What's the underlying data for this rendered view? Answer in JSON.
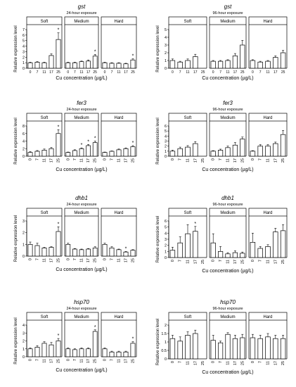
{
  "chart_data": [
    {
      "gene": "gst",
      "subtitle": "24-hour exposure",
      "ylabel": "Relative expression level",
      "xlabel": "Cu concentration (µg/L)",
      "ylim": [
        0,
        7
      ],
      "yticks": [
        0,
        1,
        2,
        3,
        4,
        5,
        6,
        7
      ],
      "groups": [
        "Soft",
        "Medium",
        "Hard"
      ],
      "categories": [
        "0",
        "7",
        "11",
        "17",
        "25"
      ],
      "values": [
        [
          1.0,
          1.1,
          1.0,
          2.3,
          5.2
        ],
        [
          1.0,
          1.0,
          1.2,
          1.3,
          2.2
        ],
        [
          1.0,
          0.9,
          0.9,
          0.8,
          1.5
        ]
      ],
      "errors": [
        [
          0.1,
          0.1,
          0.1,
          0.3,
          1.2
        ],
        [
          0.1,
          0.1,
          0.1,
          0.2,
          0.3
        ],
        [
          0.1,
          0.1,
          0.1,
          0.1,
          0.2
        ]
      ],
      "stars": [
        [
          false,
          false,
          false,
          false,
          true
        ],
        [
          false,
          false,
          false,
          false,
          true
        ],
        [
          false,
          false,
          false,
          false,
          true
        ]
      ],
      "xticks_shown": false
    },
    {
      "gene": "gst",
      "subtitle": "96-hour exposure",
      "ylabel": "Relative expression level",
      "xlabel": "Cu concentration (µg/L)",
      "ylim": [
        0,
        5
      ],
      "yticks": [
        0,
        1,
        2,
        3,
        4,
        5
      ],
      "groups": [
        "Soft",
        "Medium",
        "Hard"
      ],
      "categories": [
        "0",
        "7",
        "11",
        "17",
        "25"
      ],
      "values": [
        [
          1.0,
          0.8,
          1.0,
          1.5,
          null
        ],
        [
          0.9,
          0.9,
          1.0,
          1.6,
          3.0
        ],
        [
          1.0,
          0.8,
          0.9,
          1.4,
          2.0
        ]
      ],
      "errors": [
        [
          0.2,
          0.1,
          0.2,
          0.3,
          null
        ],
        [
          0.1,
          0.1,
          0.1,
          0.3,
          0.6
        ],
        [
          0.1,
          0.1,
          0.1,
          0.2,
          0.3
        ]
      ],
      "stars": [
        [
          false,
          false,
          false,
          false,
          false
        ],
        [
          false,
          false,
          false,
          false,
          false
        ],
        [
          false,
          false,
          false,
          false,
          false
        ]
      ],
      "xticks_shown": false
    },
    {
      "gene": "fer3",
      "subtitle": "24-hour exposure",
      "ylabel": "Relative expression level",
      "xlabel": "Cu concentration (µg/L)",
      "ylim": [
        0,
        8
      ],
      "yticks": [
        0,
        2,
        4,
        6,
        8
      ],
      "groups": [
        "Soft",
        "Medium",
        "Hard"
      ],
      "categories": [
        "0",
        "7",
        "11",
        "17",
        "25"
      ],
      "values": [
        [
          1.0,
          1.3,
          1.6,
          2.0,
          6.0
        ],
        [
          1.0,
          1.5,
          2.0,
          2.8,
          3.6
        ],
        [
          1.0,
          1.3,
          1.7,
          2.0,
          2.5
        ]
      ],
      "errors": [
        [
          0.2,
          0.2,
          0.3,
          0.3,
          1.0
        ],
        [
          0.1,
          0.2,
          0.2,
          0.3,
          0.4
        ],
        [
          0.1,
          0.1,
          0.2,
          0.2,
          0.3
        ]
      ],
      "stars": [
        [
          false,
          false,
          false,
          false,
          true
        ],
        [
          false,
          false,
          true,
          true,
          true
        ],
        [
          false,
          false,
          false,
          false,
          true
        ]
      ],
      "xticks_shown": true
    },
    {
      "gene": "fer3",
      "subtitle": "96-hour exposure",
      "ylabel": "Relative expression level",
      "xlabel": "Cu concentration (µg/L)",
      "ylim": [
        0,
        6
      ],
      "yticks": [
        0,
        1,
        2,
        3,
        4,
        5,
        6
      ],
      "groups": [
        "Soft",
        "Medium",
        "Hard"
      ],
      "categories": [
        "0",
        "7",
        "11",
        "17",
        "25"
      ],
      "values": [
        [
          1.0,
          1.5,
          1.8,
          2.5,
          null
        ],
        [
          1.0,
          1.2,
          1.7,
          2.2,
          3.4
        ],
        [
          1.0,
          2.0,
          2.0,
          2.5,
          4.3
        ]
      ],
      "errors": [
        [
          0.2,
          0.3,
          0.3,
          0.4,
          null
        ],
        [
          0.1,
          0.2,
          0.3,
          0.5,
          0.4
        ],
        [
          0.1,
          0.3,
          0.3,
          0.3,
          0.8
        ]
      ],
      "stars": [
        [
          false,
          false,
          false,
          false,
          false
        ],
        [
          false,
          false,
          false,
          false,
          false
        ],
        [
          false,
          false,
          false,
          false,
          false
        ]
      ],
      "xticks_shown": true
    },
    {
      "gene": "dhb1",
      "subtitle": "24-hour exposure",
      "ylabel": "Relative expression level",
      "xlabel": "Cu concentration (µg/L)",
      "ylim": [
        0,
        3
      ],
      "yticks": [
        0,
        1,
        2,
        3
      ],
      "groups": [
        "Soft",
        "Medium",
        "Hard"
      ],
      "categories": [
        "0",
        "7",
        "11",
        "17",
        "25"
      ],
      "values": [
        [
          1.0,
          0.9,
          0.7,
          0.75,
          2.1
        ],
        [
          1.0,
          0.6,
          0.55,
          0.6,
          0.7
        ],
        [
          1.0,
          0.7,
          0.55,
          0.35,
          0.5
        ]
      ],
      "errors": [
        [
          0.2,
          0.2,
          0.05,
          0.05,
          0.4
        ],
        [
          0.1,
          0.05,
          0.05,
          0.05,
          0.1
        ],
        [
          0.1,
          0.1,
          0.05,
          0.05,
          0.05
        ]
      ],
      "stars": [
        [
          false,
          false,
          false,
          false,
          true
        ],
        [
          false,
          false,
          false,
          false,
          false
        ],
        [
          false,
          false,
          false,
          true,
          false
        ]
      ],
      "xticks_shown": true
    },
    {
      "gene": "dhb1",
      "subtitle": "96-hour exposure",
      "ylabel": "Relative expression level",
      "xlabel": "Cu concentration (µg/L)",
      "ylim": [
        0,
        6
      ],
      "yticks": [
        0,
        1,
        2,
        3,
        4,
        5,
        6
      ],
      "groups": [
        "Soft",
        "Medium",
        "Hard"
      ],
      "categories": [
        "0",
        "7",
        "11",
        "17",
        "25"
      ],
      "values": [
        [
          1.2,
          2.4,
          3.9,
          4.3,
          null
        ],
        [
          2.4,
          1.0,
          0.6,
          0.8,
          0.7
        ],
        [
          2.5,
          1.5,
          1.8,
          4.2,
          4.4
        ]
      ],
      "errors": [
        [
          0.5,
          1.0,
          1.5,
          0.8,
          null
        ],
        [
          1.5,
          0.8,
          0.2,
          0.3,
          0.2
        ],
        [
          1.5,
          0.3,
          0.3,
          0.6,
          1.0
        ]
      ],
      "stars": [
        [
          false,
          false,
          false,
          true,
          false
        ],
        [
          false,
          false,
          false,
          false,
          false
        ],
        [
          false,
          false,
          false,
          false,
          false
        ]
      ],
      "xticks_shown": true
    },
    {
      "gene": "hsp70",
      "subtitle": "24-hour exposure",
      "ylabel": "Relative expression level",
      "xlabel": "Cu concentration (µg/L)",
      "ylim": [
        0,
        4
      ],
      "yticks": [
        0,
        1,
        2,
        3,
        4
      ],
      "groups": [
        "Soft",
        "Medium",
        "Hard"
      ],
      "categories": [
        "0",
        "7",
        "11",
        "17",
        "25"
      ],
      "values": [
        [
          1.0,
          1.2,
          1.7,
          1.5,
          2.0
        ],
        [
          1.0,
          0.9,
          1.0,
          1.0,
          3.2
        ],
        [
          1.0,
          0.6,
          0.6,
          0.6,
          1.7
        ]
      ],
      "errors": [
        [
          0.1,
          0.2,
          0.2,
          0.3,
          0.3
        ],
        [
          0.1,
          0.1,
          0.1,
          0.1,
          0.2
        ],
        [
          0.1,
          0.1,
          0.1,
          0.1,
          0.2
        ]
      ],
      "stars": [
        [
          false,
          false,
          false,
          false,
          true
        ],
        [
          false,
          false,
          false,
          false,
          true
        ],
        [
          false,
          false,
          false,
          false,
          true
        ]
      ],
      "xticks_shown": true
    },
    {
      "gene": "hsp70",
      "subtitle": "96-hour exposure",
      "ylabel": "Relative expression level",
      "xlabel": "Cu concentration (µg/L)",
      "ylim": [
        0,
        2.0
      ],
      "yticks": [
        0,
        0.5,
        1.0,
        1.5,
        2.0
      ],
      "groups": [
        "Soft",
        "Medium",
        "Hard"
      ],
      "categories": [
        "0",
        "7",
        "11",
        "17",
        "25"
      ],
      "values": [
        [
          1.2,
          1.05,
          1.4,
          1.5,
          null
        ],
        [
          1.1,
          0.95,
          1.45,
          1.2,
          1.25
        ],
        [
          1.25,
          1.2,
          1.3,
          1.2,
          1.2
        ]
      ],
      "errors": [
        [
          0.2,
          0.25,
          0.2,
          0.2,
          null
        ],
        [
          0.3,
          0.1,
          0.1,
          0.2,
          0.2
        ],
        [
          0.2,
          0.2,
          0.2,
          0.2,
          0.2
        ]
      ],
      "stars": [
        [
          false,
          false,
          false,
          false,
          false
        ],
        [
          false,
          false,
          false,
          false,
          false
        ],
        [
          false,
          false,
          false,
          false,
          false
        ]
      ],
      "xticks_shown": true
    }
  ]
}
